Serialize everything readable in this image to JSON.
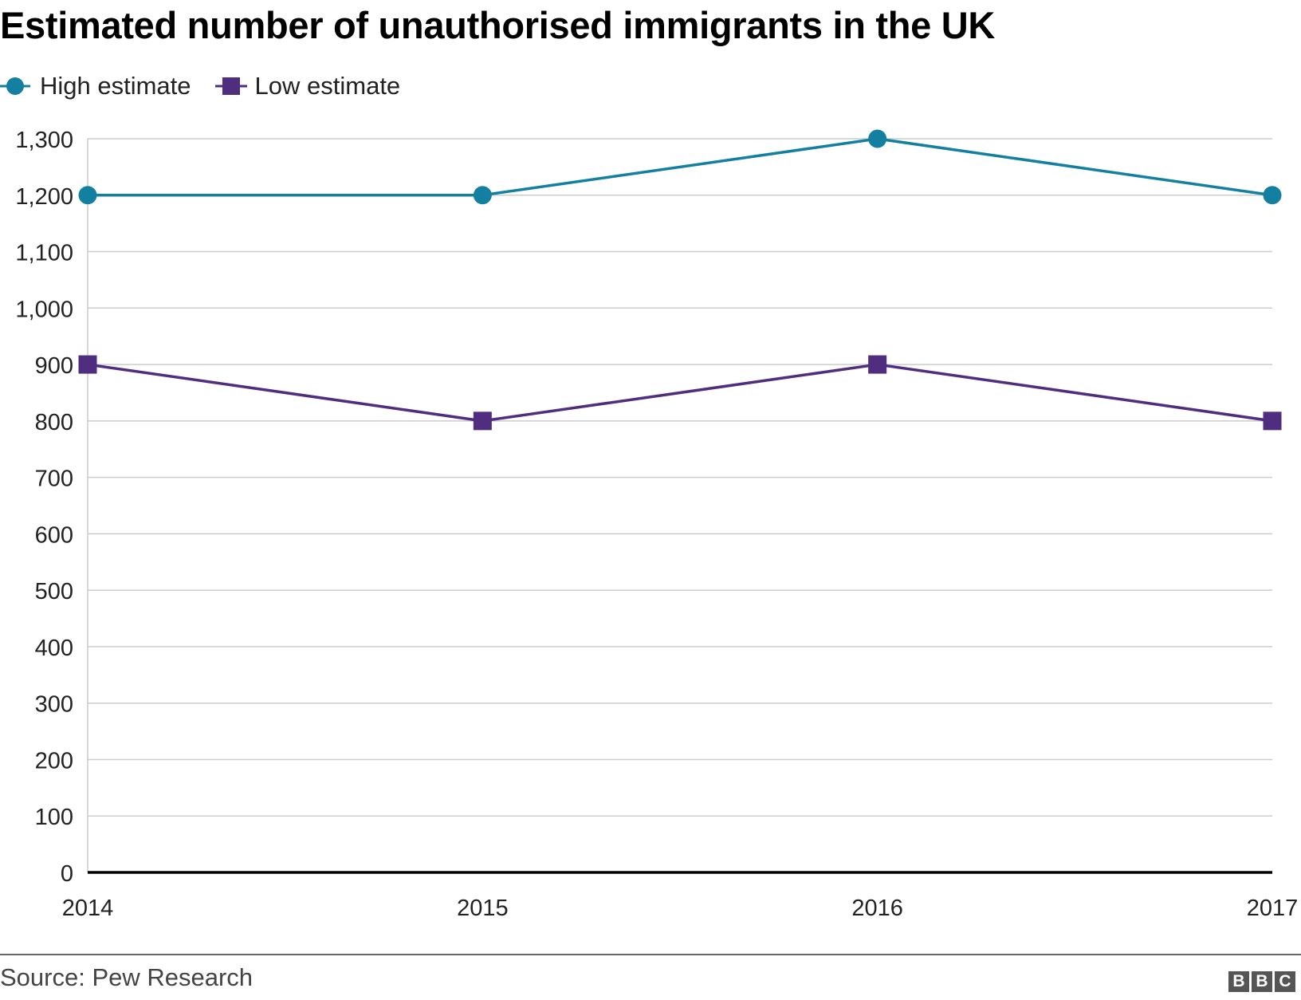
{
  "header": {
    "title": "Estimated number of unauthorised immigrants in the UK"
  },
  "legend": {
    "items": [
      {
        "label": "High estimate",
        "marker": "circle",
        "color": "#1380A1"
      },
      {
        "label": "Low estimate",
        "marker": "square",
        "color": "#4F2D7F"
      }
    ]
  },
  "chart_data": {
    "type": "line",
    "title": "Estimated number of unauthorised immigrants in the UK",
    "categories": [
      "2014",
      "2015",
      "2016",
      "2017"
    ],
    "series": [
      {
        "name": "High estimate",
        "marker": "circle",
        "color": "#1380A1",
        "values": [
          1200,
          1200,
          1300,
          1200
        ]
      },
      {
        "name": "Low estimate",
        "marker": "square",
        "color": "#4F2D7F",
        "values": [
          900,
          800,
          900,
          800
        ]
      }
    ],
    "ylim": [
      0,
      1300
    ],
    "yticks": [
      0,
      100,
      200,
      300,
      400,
      500,
      600,
      700,
      800,
      900,
      1000,
      1100,
      1200,
      1300
    ],
    "ytick_labels": [
      "0",
      "100",
      "200",
      "300",
      "400",
      "500",
      "600",
      "700",
      "800",
      "900",
      "1,000",
      "1,100",
      "1,200",
      "1,300"
    ],
    "xlabel": "",
    "ylabel": "",
    "grid": true,
    "legend_position": "top-left"
  },
  "footer": {
    "source": "Source: Pew Research",
    "brand_letters": [
      "B",
      "B",
      "C"
    ]
  }
}
